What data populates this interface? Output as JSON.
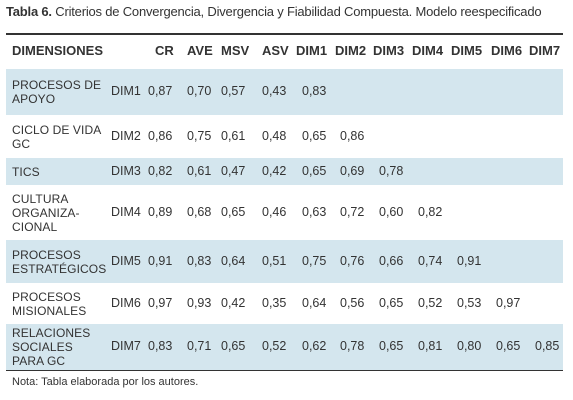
{
  "caption": {
    "label": "Tabla 6.",
    "text": "Criterios de Convergencia, Divergencia y Fiabilidad Compuesta. Modelo reespecificado"
  },
  "table": {
    "headers": [
      "DIMENSIONES",
      "",
      "CR",
      "AVE",
      "MSV",
      "ASV",
      "DIM1",
      "DIM2",
      "DIM3",
      "DIM4",
      "DIM5",
      "DIM6",
      "DIM7"
    ],
    "rows": [
      {
        "name_lines": [
          "PROCESOS DE",
          "APOYO"
        ],
        "code": "DIM1",
        "values": [
          "0,87",
          "0,70",
          "0,57",
          "0,43",
          "0,83",
          "",
          "",
          "",
          "",
          "",
          ""
        ]
      },
      {
        "name_lines": [
          "CICLO DE VIDA",
          "GC"
        ],
        "code": "DIM2",
        "values": [
          "0,86",
          "0,75",
          "0,61",
          "0,48",
          "0,65",
          "0,86",
          "",
          "",
          "",
          "",
          ""
        ]
      },
      {
        "name_lines": [
          "TICs"
        ],
        "code": "DIM3",
        "values": [
          "0,82",
          "0,61",
          "0,47",
          "0,42",
          "0,65",
          "0,69",
          "0,78",
          "",
          "",
          "",
          ""
        ]
      },
      {
        "name_lines": [
          "CULTURA",
          "ORGANIZA-",
          "CIONAL"
        ],
        "code": "DIM4",
        "values": [
          "0,89",
          "0,68",
          "0,65",
          "0,46",
          "0,63",
          "0,72",
          "0,60",
          "0,82",
          "",
          "",
          ""
        ]
      },
      {
        "name_lines": [
          "PROCESOS",
          "ESTRATÉGICOS"
        ],
        "code": "DIM5",
        "values": [
          "0,91",
          "0,83",
          "0,64",
          "0,51",
          "0,75",
          "0,76",
          "0,66",
          "0,74",
          "0,91",
          "",
          ""
        ]
      },
      {
        "name_lines": [
          "PROCESOS",
          "MISIONALES"
        ],
        "code": "DIM6",
        "values": [
          "0,97",
          "0,93",
          "0,42",
          "0,35",
          "0,64",
          "0,56",
          "0,65",
          "0,52",
          "0,53",
          "0,97",
          ""
        ]
      },
      {
        "name_lines": [
          "RELACIONES",
          "SOCIALES",
          "PARA GC"
        ],
        "code": "DIM7",
        "values": [
          "0,83",
          "0,71",
          "0,65",
          "0,52",
          "0,62",
          "0,78",
          "0,65",
          "0,81",
          "0,80",
          "0,65",
          "0,85"
        ]
      }
    ]
  },
  "note": "Nota: Tabla elaborada por los autores."
}
